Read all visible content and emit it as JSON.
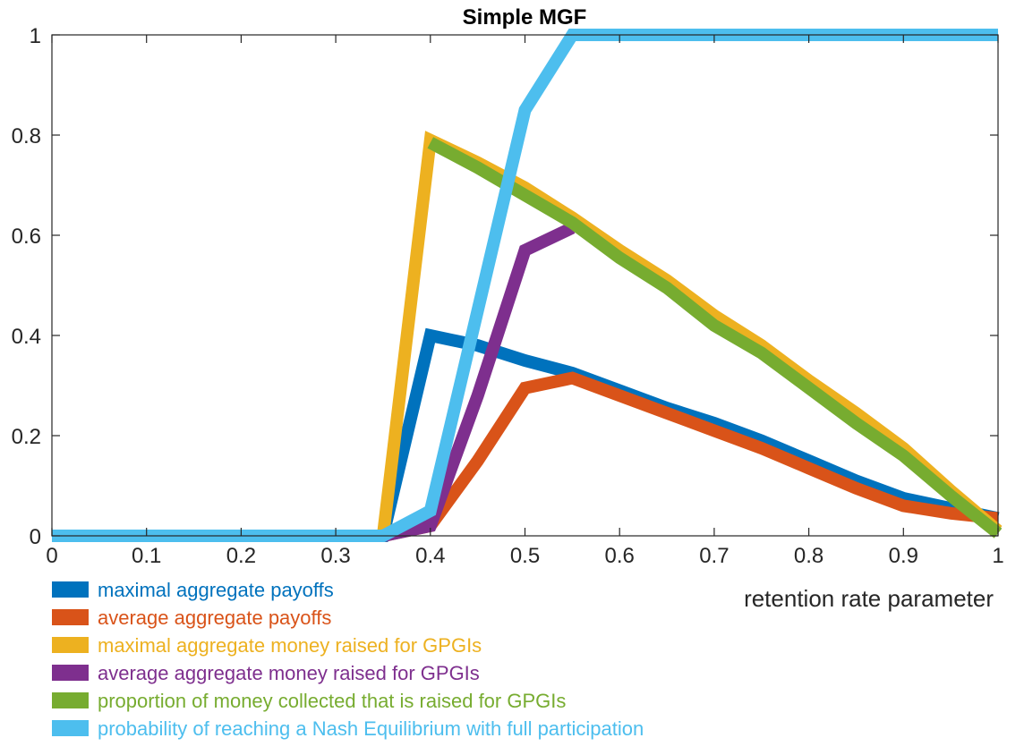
{
  "chart_data": {
    "type": "line",
    "title": "Simple MGF",
    "xlabel": "retention rate parameter",
    "ylabel": "",
    "xlim": [
      0,
      1
    ],
    "ylim": [
      0,
      1
    ],
    "x_ticks": [
      "0",
      "0.1",
      "0.2",
      "0.3",
      "0.4",
      "0.5",
      "0.6",
      "0.7",
      "0.8",
      "0.9",
      "1"
    ],
    "y_ticks": [
      "0",
      "0.2",
      "0.4",
      "0.6",
      "0.8",
      "1"
    ],
    "grid": false,
    "legend_position": "bottom-left, below axes",
    "series": [
      {
        "name": "maximal aggregate payoffs",
        "color": "#0072BD",
        "points": [
          [
            0,
            0
          ],
          [
            0.35,
            0
          ],
          [
            0.4,
            0.4
          ],
          [
            0.45,
            0.38
          ],
          [
            0.5,
            0.35
          ],
          [
            0.55,
            0.325
          ],
          [
            0.6,
            0.29
          ],
          [
            0.65,
            0.255
          ],
          [
            0.7,
            0.225
          ],
          [
            0.75,
            0.19
          ],
          [
            0.8,
            0.15
          ],
          [
            0.85,
            0.11
          ],
          [
            0.9,
            0.075
          ],
          [
            0.95,
            0.055
          ],
          [
            1,
            0.035
          ]
        ]
      },
      {
        "name": "average aggregate payoffs",
        "color": "#D95319",
        "points": [
          [
            0.35,
            0
          ],
          [
            0.4,
            0.02
          ],
          [
            0.45,
            0.15
          ],
          [
            0.5,
            0.295
          ],
          [
            0.55,
            0.315
          ],
          [
            0.6,
            0.28
          ],
          [
            0.65,
            0.245
          ],
          [
            0.7,
            0.21
          ],
          [
            0.75,
            0.175
          ],
          [
            0.8,
            0.135
          ],
          [
            0.85,
            0.095
          ],
          [
            0.9,
            0.06
          ],
          [
            0.95,
            0.045
          ],
          [
            1,
            0.035
          ]
        ]
      },
      {
        "name": "maximal aggregate money raised for GPGIs",
        "color": "#EDB120",
        "points": [
          [
            0.35,
            0
          ],
          [
            0.4,
            0.79
          ],
          [
            0.45,
            0.745
          ],
          [
            0.5,
            0.695
          ],
          [
            0.55,
            0.635
          ],
          [
            0.6,
            0.57
          ],
          [
            0.65,
            0.51
          ],
          [
            0.7,
            0.44
          ],
          [
            0.75,
            0.38
          ],
          [
            0.8,
            0.31
          ],
          [
            0.85,
            0.245
          ],
          [
            0.9,
            0.175
          ],
          [
            0.95,
            0.09
          ],
          [
            1,
            0.01
          ]
        ]
      },
      {
        "name": "average aggregate money raised for GPGIs",
        "color": "#7E2F8E",
        "points": [
          [
            0.35,
            0
          ],
          [
            0.4,
            0.02
          ],
          [
            0.45,
            0.28
          ],
          [
            0.5,
            0.57
          ],
          [
            0.55,
            0.615
          ]
        ]
      },
      {
        "name": "proportion of money collected that is raised for GPGIs",
        "color": "#77AC30",
        "points": [
          [
            0.4,
            0.785
          ],
          [
            0.45,
            0.735
          ],
          [
            0.5,
            0.68
          ],
          [
            0.55,
            0.625
          ],
          [
            0.6,
            0.555
          ],
          [
            0.65,
            0.495
          ],
          [
            0.7,
            0.42
          ],
          [
            0.75,
            0.365
          ],
          [
            0.8,
            0.295
          ],
          [
            0.85,
            0.225
          ],
          [
            0.9,
            0.16
          ],
          [
            0.95,
            0.08
          ],
          [
            1,
            0.005
          ]
        ]
      },
      {
        "name": "probability of reaching a Nash Equilibrium with full participation",
        "color": "#4DBEEE",
        "points": [
          [
            0,
            0
          ],
          [
            0.35,
            0
          ],
          [
            0.4,
            0.05
          ],
          [
            0.45,
            0.45
          ],
          [
            0.5,
            0.85
          ],
          [
            0.55,
            1
          ],
          [
            0.6,
            1
          ],
          [
            0.7,
            1
          ],
          [
            0.8,
            1
          ],
          [
            0.9,
            1
          ],
          [
            1,
            1
          ]
        ]
      }
    ]
  }
}
